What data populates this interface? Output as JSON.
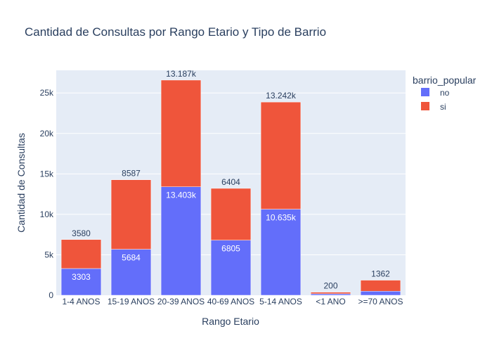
{
  "chart_data": {
    "type": "bar",
    "title": "Cantidad de Consultas por Rango Etario y Tipo de Barrio",
    "xlabel": "Rango Etario",
    "ylabel": "Cantidad de Consultas",
    "categories": [
      "1-4 ANOS",
      "15-19 ANOS",
      "20-39 ANOS",
      "40-69 ANOS",
      "5-14 ANOS",
      "<1 ANO",
      ">=70 ANOS"
    ],
    "series": [
      {
        "name": "no",
        "color": "#636efa",
        "values": [
          3303,
          5684,
          13403,
          6805,
          10635,
          180,
          500
        ],
        "labels": [
          "3303",
          "5684",
          "13.403k",
          "6805",
          "10.635k",
          "",
          ""
        ],
        "label_position": "inside"
      },
      {
        "name": "si",
        "color": "#ef553b",
        "values": [
          3580,
          8587,
          13187,
          6404,
          13242,
          200,
          1362
        ],
        "labels": [
          "3580",
          "8587",
          "13.187k",
          "6404",
          "13.242k",
          "200",
          "1362"
        ],
        "label_position": "outside"
      }
    ],
    "stacked": true,
    "ylim": [
      0,
      27800
    ],
    "yticks": [
      0,
      5000,
      10000,
      15000,
      20000,
      25000
    ],
    "ytick_labels": [
      "0",
      "5k",
      "10k",
      "15k",
      "20k",
      "25k"
    ],
    "grid": true,
    "legend_title": "barrio_popular",
    "legend_position": "top-right",
    "plot_bg": "#e5ecf6"
  }
}
